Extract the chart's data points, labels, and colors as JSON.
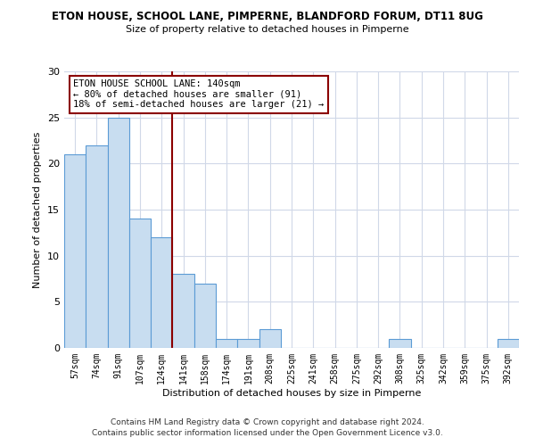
{
  "title1": "ETON HOUSE, SCHOOL LANE, PIMPERNE, BLANDFORD FORUM, DT11 8UG",
  "title2": "Size of property relative to detached houses in Pimperne",
  "xlabel": "Distribution of detached houses by size in Pimperne",
  "ylabel": "Number of detached properties",
  "bin_labels": [
    "57sqm",
    "74sqm",
    "91sqm",
    "107sqm",
    "124sqm",
    "141sqm",
    "158sqm",
    "174sqm",
    "191sqm",
    "208sqm",
    "225sqm",
    "241sqm",
    "258sqm",
    "275sqm",
    "292sqm",
    "308sqm",
    "325sqm",
    "342sqm",
    "359sqm",
    "375sqm",
    "392sqm"
  ],
  "bar_heights": [
    21,
    22,
    25,
    14,
    12,
    8,
    7,
    1,
    1,
    2,
    0,
    0,
    0,
    0,
    0,
    1,
    0,
    0,
    0,
    0,
    1
  ],
  "bar_color": "#c8ddf0",
  "bar_edge_color": "#5b9bd5",
  "vline_color": "#8b0000",
  "annotation_text": "ETON HOUSE SCHOOL LANE: 140sqm\n← 80% of detached houses are smaller (91)\n18% of semi-detached houses are larger (21) →",
  "annotation_box_edge": "#8b0000",
  "ylim": [
    0,
    30
  ],
  "yticks": [
    0,
    5,
    10,
    15,
    20,
    25,
    30
  ],
  "footer1": "Contains HM Land Registry data © Crown copyright and database right 2024.",
  "footer2": "Contains public sector information licensed under the Open Government Licence v3.0.",
  "background_color": "#ffffff",
  "grid_color": "#d0d8e8"
}
